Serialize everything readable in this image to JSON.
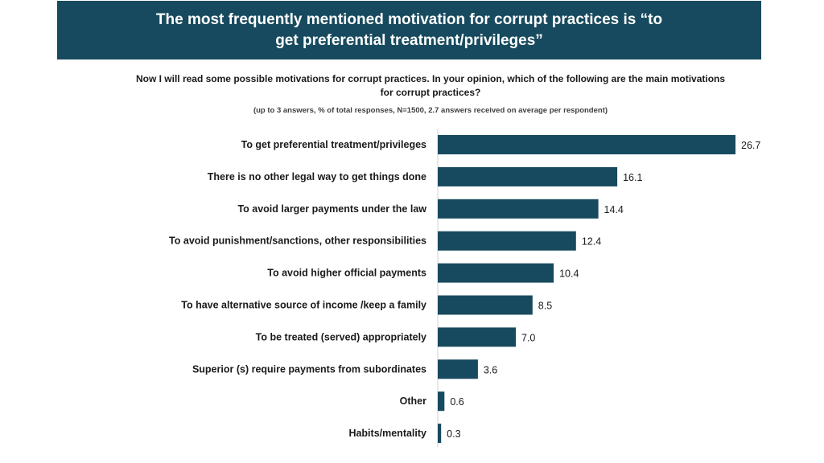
{
  "header": {
    "title": "The most frequently mentioned motivation for corrupt practices is “to get preferential treatment/privileges”"
  },
  "question": "Now I will read some possible motivations for corrupt practices. In your opinion, which of the following are the main motivations for corrupt practices?",
  "note": "(up to 3 answers, % of total responses, N=1500, 2.7 answers received on average per respondent)",
  "colors": {
    "bar": "#174a5e",
    "banner": "#174a5e",
    "axis": "#d0d0d0"
  },
  "chart_data": {
    "type": "bar",
    "orientation": "horizontal",
    "categories": [
      "To get preferential treatment/privileges",
      "There is no other legal way to get things done",
      "To avoid larger payments under the law",
      "To avoid punishment/sanctions, other responsibilities",
      "To avoid higher official payments",
      "To have alternative source of income /keep a family",
      "To be treated (served) appropriately",
      "Superior (s) require payments from subordinates",
      "Other",
      "Habits/mentality"
    ],
    "values": [
      26.7,
      16.1,
      14.4,
      12.4,
      10.4,
      8.5,
      7.0,
      3.6,
      0.6,
      0.3
    ],
    "value_labels": [
      "26.7",
      "16.1",
      "14.4",
      "12.4",
      "10.4",
      "8.5",
      "7.0",
      "3.6",
      "0.6",
      "0.3"
    ],
    "title": "",
    "xlabel": "",
    "ylabel": "",
    "grid": false,
    "legend": "none"
  }
}
